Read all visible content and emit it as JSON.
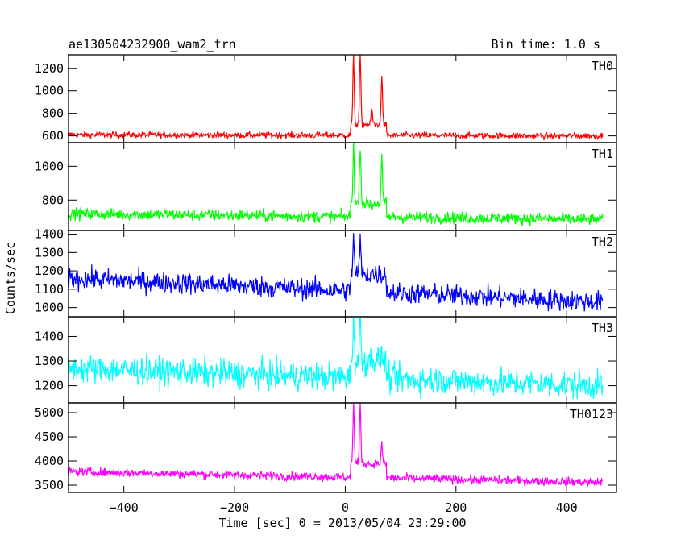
{
  "chart_data": {
    "type": "line",
    "title": "ae130504232900_wam2_trn",
    "subtitle": "Bin time: 1.0 s",
    "xlabel": "Time [sec] 0 = 2013/05/04 23:29:00",
    "ylabel": "Counts/sec",
    "xlim": [
      -500,
      490
    ],
    "x_ticks": [
      -400,
      -200,
      0,
      200,
      400
    ],
    "x_tick_labels": [
      "−400",
      "−200",
      "0",
      "200",
      "400"
    ],
    "x_range": [
      -500,
      465
    ],
    "burst": {
      "start": 10,
      "peaks": [
        15,
        27,
        48,
        66
      ]
    },
    "series": [
      {
        "name": "TH0",
        "color": "#ff0000",
        "ylim": [
          540,
          1320
        ],
        "yticks": [
          600,
          800,
          1000,
          1200
        ],
        "baseline_start": 610,
        "baseline_end": 600,
        "noise": 22,
        "peak_values": [
          1320,
          1320,
          850,
          1150
        ],
        "burst_level": 700
      },
      {
        "name": "TH1",
        "color": "#00ff00",
        "ylim": [
          620,
          1140
        ],
        "yticks": [
          800,
          1000
        ],
        "baseline_start": 720,
        "baseline_end": 685,
        "noise": 28,
        "peak_values": [
          1140,
          1140,
          760,
          1050
        ],
        "burst_level": 780
      },
      {
        "name": "TH2",
        "color": "#0000ff",
        "ylim": [
          950,
          1420
        ],
        "yticks": [
          1000,
          1100,
          1200,
          1300,
          1400
        ],
        "baseline_start": 1160,
        "baseline_end": 1030,
        "noise": 45,
        "peak_values": [
          1400,
          1380,
          1200,
          1180
        ],
        "burst_level": 1180
      },
      {
        "name": "TH3",
        "color": "#00ffff",
        "ylim": [
          1130,
          1480
        ],
        "yticks": [
          1200,
          1300,
          1400
        ],
        "baseline_start": 1270,
        "baseline_end": 1200,
        "noise": 45,
        "peak_values": [
          1480,
          1480,
          1330,
          1330
        ],
        "burst_level": 1300
      },
      {
        "name": "TH0123",
        "color": "#ff00ff",
        "ylim": [
          3350,
          5200
        ],
        "yticks": [
          3500,
          4000,
          4500,
          5000
        ],
        "baseline_start": 3780,
        "baseline_end": 3560,
        "noise": 70,
        "peak_values": [
          5200,
          5200,
          3900,
          4350
        ],
        "burst_level": 3950
      }
    ]
  }
}
